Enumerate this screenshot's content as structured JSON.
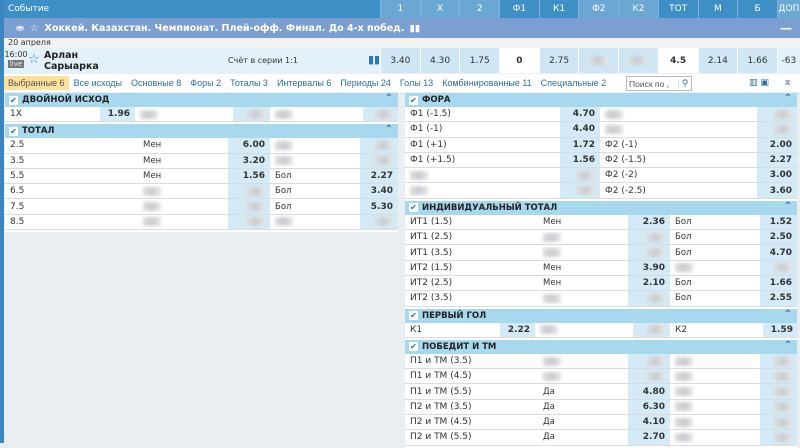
{
  "header": {
    "event_label": "Событие",
    "columns": [
      "1",
      "X",
      "2",
      "Ф1",
      "К1",
      "Ф2",
      "К2",
      "ТОТ",
      "М",
      "Б",
      "ДОП"
    ]
  },
  "league": {
    "title": "Хоккей. Казахстан. Чемпионат. Плей-офф. Финал. До 4-х побед.",
    "collapse": "—"
  },
  "date": "20 апреля",
  "event": {
    "time": "16:00",
    "live": "live",
    "team1": "Арлан",
    "team2": "Сарыарка",
    "score": "Счёт в серии 1:1",
    "odds": [
      "3.40",
      "4.30",
      "1.75",
      "0",
      "2.75",
      null,
      null,
      "4.5",
      "2.14",
      "1.66",
      "-63"
    ]
  },
  "tabs": [
    "Выбранные 6",
    "Все исходы",
    "Основные 8",
    "Форы 2",
    "Тоталы 3",
    "Интервалы 6",
    "Периоды 24",
    "Голы 13",
    "Комбинированные 11",
    "Специальные 2"
  ],
  "search": {
    "placeholder": "Поиск по ,"
  },
  "left_sections": [
    {
      "title": "ДВОЙНОЙ ИСХОД",
      "layout": "pair3",
      "rows": [
        [
          "1X",
          "1.96",
          null,
          null,
          null,
          null
        ]
      ]
    },
    {
      "title": "ТОТАЛ",
      "layout": "quad",
      "rows": [
        [
          "2.5",
          "Мен",
          "6.00",
          null,
          null
        ],
        [
          "3.5",
          "Мен",
          "3.20",
          null,
          null
        ],
        [
          "5.5",
          "Мен",
          "1.56",
          "Бол",
          "2.27"
        ],
        [
          "6.5",
          null,
          null,
          "Бол",
          "3.40"
        ],
        [
          "7.5",
          null,
          null,
          "Бол",
          "5.30"
        ],
        [
          "8.5",
          null,
          null,
          null,
          null
        ]
      ]
    }
  ],
  "right_sections": [
    {
      "title": "ФОРА",
      "layout": "pair2",
      "rows": [
        [
          "Ф1 (-1.5)",
          "4.70",
          null,
          null
        ],
        [
          "Ф1 (-1)",
          "4.40",
          null,
          null
        ],
        [
          "Ф1 (+1)",
          "1.72",
          "Ф2 (-1)",
          "2.00"
        ],
        [
          "Ф1 (+1.5)",
          "1.56",
          "Ф2 (-1.5)",
          "2.27"
        ],
        [
          null,
          null,
          "Ф2 (-2)",
          "3.00"
        ],
        [
          null,
          null,
          "Ф2 (-2.5)",
          "3.60"
        ]
      ]
    },
    {
      "title": "ИНДИВИДУАЛЬНЫЙ ТОТАЛ",
      "layout": "quad",
      "rows": [
        [
          "ИТ1 (1.5)",
          "Мен",
          "2.36",
          "Бол",
          "1.52"
        ],
        [
          "ИТ1 (2.5)",
          null,
          null,
          "Бол",
          "2.50"
        ],
        [
          "ИТ1 (3.5)",
          null,
          null,
          "Бол",
          "4.70"
        ],
        [
          "ИТ2 (1.5)",
          "Мен",
          "3.90",
          null,
          null
        ],
        [
          "ИТ2 (2.5)",
          "Мен",
          "2.10",
          "Бол",
          "1.66"
        ],
        [
          "ИТ2 (3.5)",
          null,
          null,
          "Бол",
          "2.55"
        ]
      ]
    },
    {
      "title": "ПЕРВЫЙ ГОЛ",
      "layout": "pair3",
      "rows": [
        [
          "К1",
          "2.22",
          null,
          null,
          "К2",
          "1.59"
        ]
      ]
    },
    {
      "title": "ПОБЕДИТ И ТМ",
      "layout": "quad",
      "rows": [
        [
          "П1 и ТМ (3.5)",
          null,
          null,
          null,
          null
        ],
        [
          "П1 и ТМ (4.5)",
          null,
          null,
          null,
          null
        ],
        [
          "П1 и ТМ (5.5)",
          "Да",
          "4.80",
          null,
          null
        ],
        [
          "П2 и ТМ (3.5)",
          "Да",
          "6.30",
          null,
          null
        ],
        [
          "П2 и ТМ (4.5)",
          "Да",
          "4.10",
          null,
          null
        ],
        [
          "П2 и ТМ (5.5)",
          "Да",
          "2.70",
          null,
          null
        ]
      ]
    }
  ],
  "colors": {
    "header": "#3d8fc5",
    "league": "#7a9fd0",
    "section": "#a8d8ee",
    "odd_cell": "#d4eaf6",
    "active_tab": "#fde09a"
  }
}
